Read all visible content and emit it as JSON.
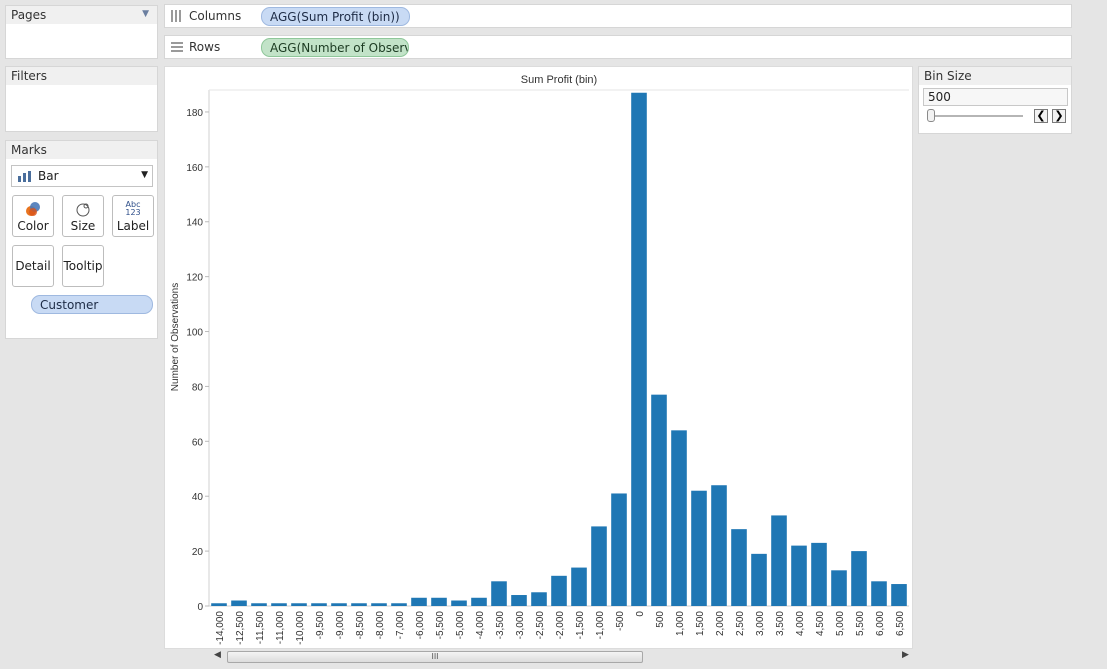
{
  "pages": {
    "title": "Pages"
  },
  "filters": {
    "title": "Filters"
  },
  "marks": {
    "title": "Marks",
    "mark_type": "Bar",
    "buttons": {
      "color": "Color",
      "size": "Size",
      "label": "Label",
      "detail": "Detail",
      "tooltip": "Tooltip"
    },
    "label_icon_text": [
      "Abc",
      "123"
    ],
    "detail_pill": "Customer"
  },
  "shelves": {
    "columns": {
      "label": "Columns",
      "pill": "AGG(Sum Profit (bin))"
    },
    "rows": {
      "label": "Rows",
      "pill": "AGG(Number of Observa.."
    }
  },
  "bin_size": {
    "title": "Bin Size",
    "value": "500",
    "slider_level": 0
  },
  "scrollbar": {
    "grip": "III"
  },
  "colors": {
    "bar": "#1f77b4",
    "columns_pill": "#c8daf4",
    "rows_pill": "#c2e3c8"
  },
  "chart_data": {
    "type": "bar",
    "title": "Sum Profit (bin)",
    "ylabel": "Number of Observations",
    "xlabel": "",
    "ylim": [
      0,
      188
    ],
    "yticks": [
      "0",
      "20",
      "40",
      "60",
      "80",
      "100",
      "120",
      "140",
      "160",
      "180"
    ],
    "categories": [
      "-14,000",
      "-12,500",
      "-11,500",
      "-11,000",
      "-10,000",
      "-9,500",
      "-9,000",
      "-8,500",
      "-8,000",
      "-7,000",
      "-6,000",
      "-5,500",
      "-5,000",
      "-4,000",
      "-3,500",
      "-3,000",
      "-2,500",
      "-2,000",
      "-1,500",
      "-1,000",
      "-500",
      "0",
      "500",
      "1,000",
      "1,500",
      "2,000",
      "2,500",
      "3,000",
      "3,500",
      "4,000",
      "4,500",
      "5,000",
      "5,500",
      "6,000",
      "6,500"
    ],
    "values": [
      1,
      2,
      1,
      1,
      1,
      1,
      1,
      1,
      1,
      1,
      3,
      3,
      2,
      3,
      9,
      4,
      5,
      11,
      14,
      29,
      41,
      187,
      77,
      64,
      42,
      44,
      28,
      19,
      33,
      22,
      23,
      13,
      20,
      9,
      8
    ],
    "grid": false
  }
}
